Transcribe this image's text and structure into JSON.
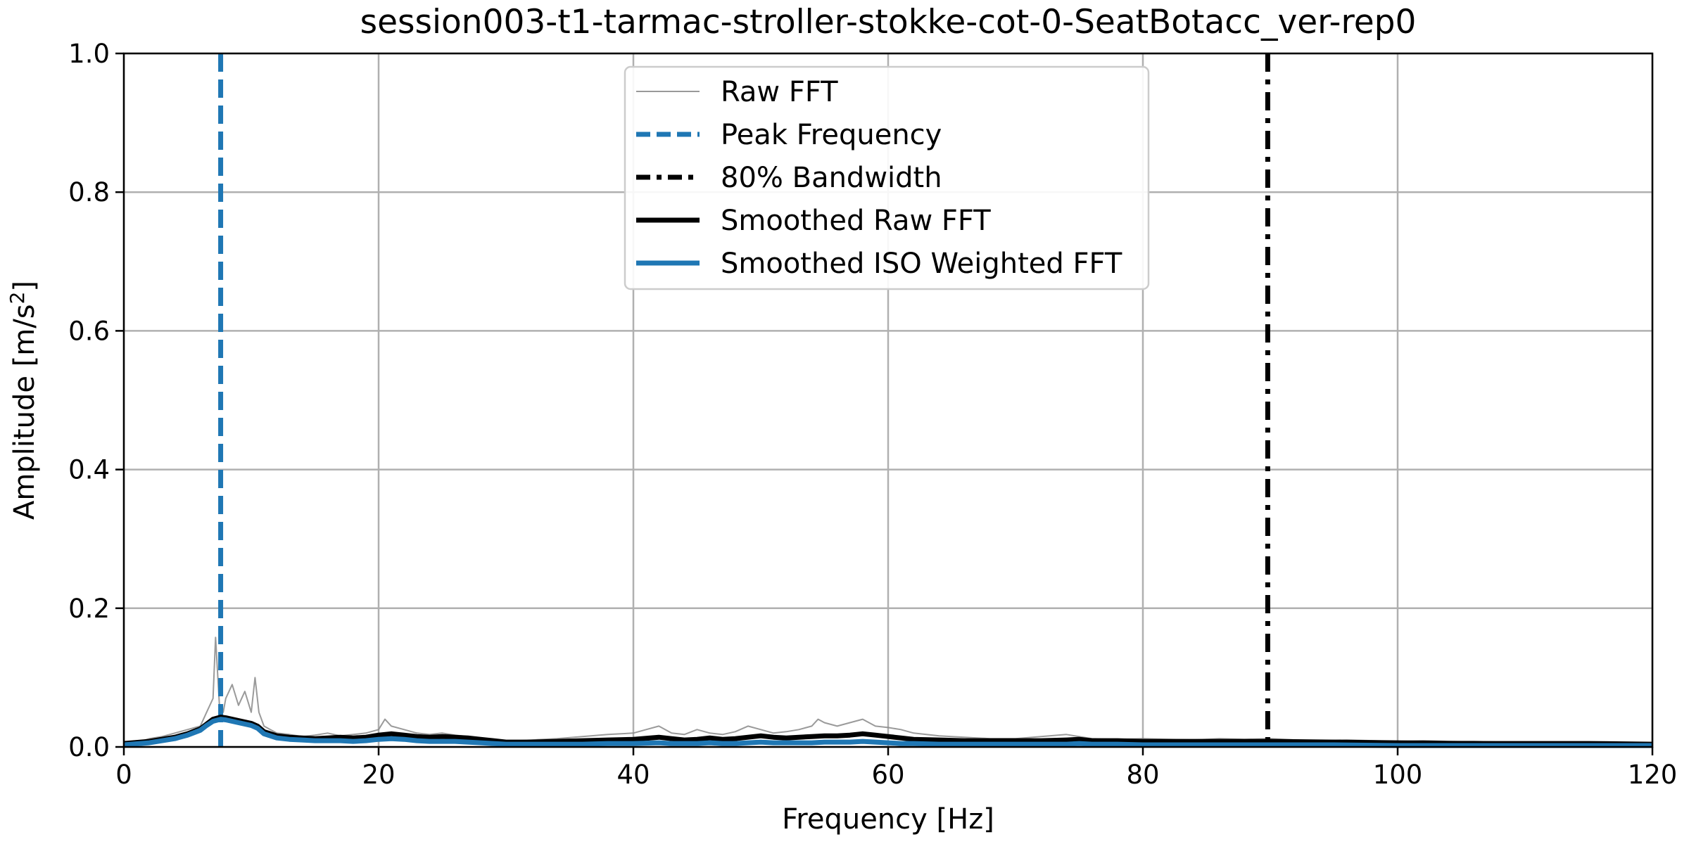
{
  "chart_data": {
    "type": "line",
    "title": "session003-t1-tarmac-stroller-stokke-cot-0-SeatBotacc_ver-rep0",
    "xlabel": "Frequency [Hz]",
    "ylabel_main": "Amplitude [m/s",
    "ylabel_sup": "2",
    "ylabel_end": "]",
    "xlim": [
      0,
      120
    ],
    "ylim": [
      0,
      1.0
    ],
    "xticks": [
      0,
      20,
      40,
      60,
      80,
      100,
      120
    ],
    "xtick_labels": [
      "0",
      "20",
      "40",
      "60",
      "80",
      "100",
      "120"
    ],
    "yticks": [
      0.0,
      0.2,
      0.4,
      0.6,
      0.8,
      1.0
    ],
    "ytick_labels": [
      "0.0",
      "0.2",
      "0.4",
      "0.6",
      "0.8",
      "1.0"
    ],
    "grid": true,
    "legend_position": "top-center",
    "series": [
      {
        "name": "Raw FFT",
        "style": "thin",
        "color": "#888888",
        "x": [
          0,
          1,
          2,
          3,
          4,
          5,
          6,
          6.5,
          7,
          7.2,
          7.5,
          7.8,
          8,
          8.5,
          9,
          9.5,
          10,
          10.3,
          10.6,
          11,
          12,
          13,
          14,
          15,
          16,
          17,
          18,
          19,
          20,
          20.5,
          21,
          22,
          23,
          24,
          25,
          26,
          27,
          28,
          29,
          30,
          32,
          34,
          36,
          38,
          40,
          41,
          42,
          43,
          44,
          45,
          46,
          47,
          48,
          49,
          50,
          51,
          52,
          53,
          54,
          54.5,
          55,
          56,
          57,
          58,
          59,
          60,
          61,
          62,
          63,
          64,
          65,
          66,
          67,
          68,
          70,
          72,
          74,
          76,
          78,
          80,
          82,
          84,
          86,
          88,
          90,
          92,
          94,
          96,
          98,
          100,
          102,
          104,
          106,
          108,
          110,
          112,
          114,
          116,
          118,
          120
        ],
        "values": [
          0.004,
          0.006,
          0.012,
          0.015,
          0.02,
          0.025,
          0.03,
          0.05,
          0.07,
          0.158,
          0.06,
          0.05,
          0.07,
          0.09,
          0.06,
          0.08,
          0.05,
          0.1,
          0.05,
          0.03,
          0.02,
          0.018,
          0.015,
          0.017,
          0.02,
          0.016,
          0.018,
          0.02,
          0.025,
          0.04,
          0.03,
          0.025,
          0.02,
          0.018,
          0.02,
          0.017,
          0.015,
          0.012,
          0.01,
          0.008,
          0.01,
          0.012,
          0.015,
          0.018,
          0.02,
          0.025,
          0.03,
          0.02,
          0.018,
          0.025,
          0.02,
          0.018,
          0.022,
          0.03,
          0.025,
          0.02,
          0.022,
          0.025,
          0.03,
          0.04,
          0.035,
          0.03,
          0.035,
          0.04,
          0.03,
          0.028,
          0.025,
          0.02,
          0.018,
          0.016,
          0.015,
          0.014,
          0.013,
          0.012,
          0.012,
          0.015,
          0.018,
          0.012,
          0.011,
          0.012,
          0.011,
          0.01,
          0.012,
          0.011,
          0.012,
          0.01,
          0.009,
          0.01,
          0.009,
          0.008,
          0.009,
          0.008,
          0.008,
          0.007,
          0.007,
          0.006,
          0.007,
          0.006,
          0.006,
          0.005
        ]
      },
      {
        "name": "Peak Frequency",
        "style": "vline-dashed",
        "color": "#1f77b4",
        "x_value": 7.6
      },
      {
        "name": "80% Bandwidth",
        "style": "vline-dashdot",
        "color": "#000000",
        "x_value": 89.8
      },
      {
        "name": "Smoothed Raw FFT",
        "style": "thick",
        "color": "#000000",
        "x": [
          0,
          2,
          4,
          5,
          6,
          6.5,
          7,
          7.6,
          8,
          9,
          10,
          10.5,
          11,
          12,
          13,
          14,
          15,
          16,
          17,
          18,
          19,
          20,
          21,
          22,
          23,
          24,
          25,
          26,
          27,
          28,
          29,
          30,
          32,
          34,
          36,
          38,
          40,
          42,
          43,
          44,
          45,
          46,
          47,
          48,
          49,
          50,
          51,
          52,
          53,
          54,
          55,
          56,
          57,
          58,
          59,
          60,
          61,
          62,
          64,
          66,
          68,
          70,
          72,
          74,
          75,
          76,
          78,
          80,
          85,
          90,
          95,
          100,
          105,
          110,
          115,
          120
        ],
        "values": [
          0.005,
          0.008,
          0.014,
          0.019,
          0.026,
          0.033,
          0.04,
          0.043,
          0.042,
          0.038,
          0.034,
          0.03,
          0.022,
          0.016,
          0.014,
          0.013,
          0.012,
          0.013,
          0.014,
          0.013,
          0.014,
          0.017,
          0.019,
          0.017,
          0.015,
          0.014,
          0.015,
          0.014,
          0.013,
          0.011,
          0.009,
          0.007,
          0.007,
          0.008,
          0.009,
          0.01,
          0.011,
          0.014,
          0.012,
          0.01,
          0.011,
          0.013,
          0.011,
          0.012,
          0.014,
          0.016,
          0.014,
          0.013,
          0.014,
          0.015,
          0.016,
          0.016,
          0.017,
          0.019,
          0.017,
          0.015,
          0.013,
          0.011,
          0.01,
          0.009,
          0.009,
          0.009,
          0.009,
          0.01,
          0.011,
          0.009,
          0.009,
          0.008,
          0.008,
          0.008,
          0.007,
          0.006,
          0.005,
          0.005,
          0.005,
          0.004
        ]
      },
      {
        "name": "Smoothed ISO Weighted FFT",
        "style": "thick",
        "color": "#1f77b4",
        "x": [
          0,
          2,
          4,
          5,
          6,
          6.5,
          7,
          7.6,
          8,
          9,
          10,
          10.5,
          11,
          12,
          13,
          14,
          15,
          16,
          17,
          18,
          19,
          20,
          21,
          22,
          23,
          24,
          25,
          26,
          27,
          28,
          29,
          30,
          32,
          34,
          36,
          38,
          40,
          42,
          43,
          44,
          45,
          46,
          47,
          48,
          49,
          50,
          51,
          52,
          53,
          54,
          55,
          56,
          57,
          58,
          59,
          60,
          61,
          62,
          64,
          66,
          68,
          70,
          72,
          74,
          75,
          76,
          78,
          80,
          85,
          90,
          95,
          100,
          105,
          110,
          115,
          120
        ],
        "values": [
          0.003,
          0.006,
          0.012,
          0.017,
          0.024,
          0.031,
          0.037,
          0.04,
          0.039,
          0.035,
          0.031,
          0.027,
          0.019,
          0.013,
          0.011,
          0.01,
          0.009,
          0.009,
          0.009,
          0.008,
          0.009,
          0.011,
          0.012,
          0.011,
          0.009,
          0.008,
          0.008,
          0.008,
          0.007,
          0.006,
          0.005,
          0.004,
          0.004,
          0.004,
          0.004,
          0.005,
          0.005,
          0.006,
          0.005,
          0.005,
          0.005,
          0.006,
          0.005,
          0.005,
          0.006,
          0.007,
          0.006,
          0.006,
          0.006,
          0.006,
          0.007,
          0.007,
          0.007,
          0.008,
          0.007,
          0.006,
          0.005,
          0.005,
          0.004,
          0.004,
          0.004,
          0.004,
          0.004,
          0.004,
          0.005,
          0.004,
          0.004,
          0.003,
          0.003,
          0.003,
          0.003,
          0.002,
          0.002,
          0.002,
          0.002,
          0.002
        ]
      }
    ]
  }
}
